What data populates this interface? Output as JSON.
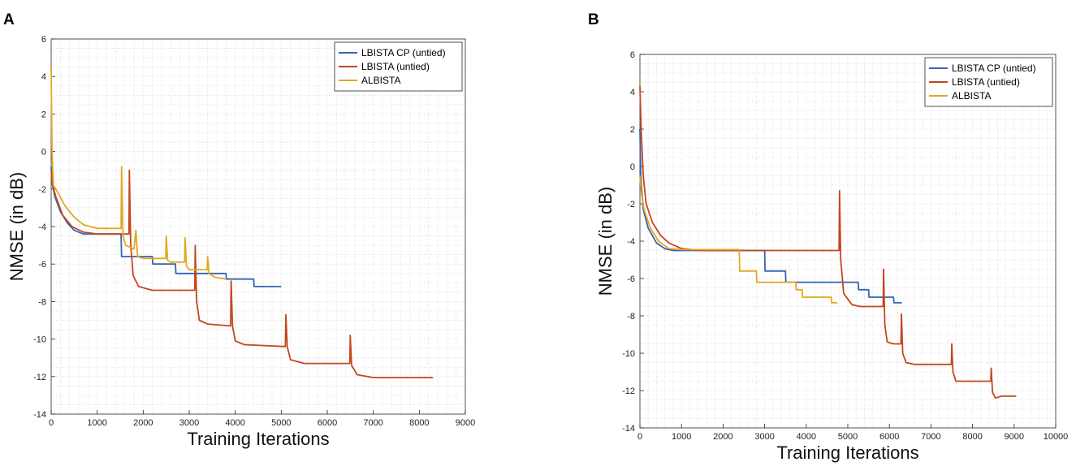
{
  "chart_data": [
    {
      "panel": "A",
      "type": "line",
      "xlabel": "Training Iterations",
      "ylabel": "NMSE (in dB)",
      "xlim": [
        0,
        9000
      ],
      "ylim": [
        -14,
        6
      ],
      "xticks": [
        0,
        1000,
        2000,
        3000,
        4000,
        5000,
        6000,
        7000,
        8000,
        9000
      ],
      "yticks": [
        -14,
        -12,
        -10,
        -8,
        -6,
        -4,
        -2,
        0,
        2,
        4,
        6
      ],
      "grid": "minor dotted",
      "legend_position": "top-right",
      "series": [
        {
          "name": "LBISTA CP (untied)",
          "color": "#3466b0",
          "points": [
            [
              0,
              -0.8
            ],
            [
              30,
              -1.8
            ],
            [
              80,
              -2.4
            ],
            [
              200,
              -3.2
            ],
            [
              350,
              -3.8
            ],
            [
              500,
              -4.2
            ],
            [
              700,
              -4.4
            ],
            [
              1520,
              -4.4
            ],
            [
              1530,
              -5.6
            ],
            [
              2200,
              -5.6
            ],
            [
              2210,
              -6.0
            ],
            [
              2700,
              -6.0
            ],
            [
              2710,
              -6.5
            ],
            [
              3200,
              -6.5
            ],
            [
              3210,
              -6.5
            ],
            [
              3800,
              -6.5
            ],
            [
              3810,
              -6.8
            ],
            [
              4400,
              -6.8
            ],
            [
              4410,
              -7.2
            ],
            [
              5000,
              -7.2
            ]
          ]
        },
        {
          "name": "LBISTA (untied)",
          "color": "#c4461f",
          "points": [
            [
              0,
              -1.0
            ],
            [
              30,
              -1.8
            ],
            [
              100,
              -2.4
            ],
            [
              250,
              -3.4
            ],
            [
              450,
              -4.0
            ],
            [
              700,
              -4.3
            ],
            [
              1000,
              -4.4
            ],
            [
              1690,
              -4.4
            ],
            [
              1700,
              -1.0
            ],
            [
              1730,
              -5.0
            ],
            [
              1780,
              -6.6
            ],
            [
              1900,
              -7.2
            ],
            [
              2200,
              -7.4
            ],
            [
              3120,
              -7.4
            ],
            [
              3130,
              -5.0
            ],
            [
              3160,
              -8.0
            ],
            [
              3220,
              -9.0
            ],
            [
              3400,
              -9.2
            ],
            [
              3900,
              -9.3
            ],
            [
              3910,
              -6.9
            ],
            [
              3940,
              -9.3
            ],
            [
              4000,
              -10.1
            ],
            [
              4200,
              -10.3
            ],
            [
              5090,
              -10.4
            ],
            [
              5100,
              -8.7
            ],
            [
              5130,
              -10.4
            ],
            [
              5200,
              -11.1
            ],
            [
              5500,
              -11.3
            ],
            [
              6490,
              -11.3
            ],
            [
              6500,
              -9.8
            ],
            [
              6530,
              -11.4
            ],
            [
              6650,
              -11.9
            ],
            [
              7000,
              -12.05
            ],
            [
              8300,
              -12.05
            ]
          ]
        },
        {
          "name": "ALBISTA",
          "color": "#e1a823",
          "points": [
            [
              0,
              4.5
            ],
            [
              20,
              0.0
            ],
            [
              50,
              -1.8
            ],
            [
              150,
              -2.2
            ],
            [
              300,
              -2.9
            ],
            [
              500,
              -3.5
            ],
            [
              700,
              -3.9
            ],
            [
              1000,
              -4.1
            ],
            [
              1520,
              -4.1
            ],
            [
              1530,
              -0.8
            ],
            [
              1560,
              -4.5
            ],
            [
              1620,
              -5.0
            ],
            [
              1800,
              -5.2
            ],
            [
              1840,
              -4.2
            ],
            [
              1880,
              -5.6
            ],
            [
              2000,
              -5.7
            ],
            [
              2490,
              -5.7
            ],
            [
              2500,
              -4.5
            ],
            [
              2530,
              -5.8
            ],
            [
              2600,
              -5.9
            ],
            [
              2900,
              -5.9
            ],
            [
              2910,
              -4.6
            ],
            [
              2940,
              -6.1
            ],
            [
              3000,
              -6.3
            ],
            [
              3390,
              -6.3
            ],
            [
              3400,
              -5.6
            ],
            [
              3430,
              -6.5
            ],
            [
              3550,
              -6.7
            ],
            [
              3800,
              -6.8
            ]
          ]
        }
      ]
    },
    {
      "panel": "B",
      "type": "line",
      "xlabel": "Training Iterations",
      "ylabel": "NMSE (in dB)",
      "xlim": [
        0,
        10000
      ],
      "ylim": [
        -14,
        6
      ],
      "xticks": [
        0,
        1000,
        2000,
        3000,
        4000,
        5000,
        6000,
        7000,
        8000,
        9000,
        10000
      ],
      "yticks": [
        -14,
        -12,
        -10,
        -8,
        -6,
        -4,
        -2,
        0,
        2,
        4,
        6
      ],
      "grid": "minor dotted",
      "legend_position": "top-right",
      "series": [
        {
          "name": "LBISTA CP (untied)",
          "color": "#3466b0",
          "points": [
            [
              0,
              2.0
            ],
            [
              20,
              -0.5
            ],
            [
              80,
              -2.3
            ],
            [
              200,
              -3.3
            ],
            [
              400,
              -4.1
            ],
            [
              600,
              -4.4
            ],
            [
              800,
              -4.5
            ],
            [
              3000,
              -4.5
            ],
            [
              3010,
              -5.6
            ],
            [
              3500,
              -5.6
            ],
            [
              3510,
              -6.2
            ],
            [
              5250,
              -6.2
            ],
            [
              5260,
              -6.6
            ],
            [
              5500,
              -6.6
            ],
            [
              5510,
              -7.0
            ],
            [
              6100,
              -7.0
            ],
            [
              6110,
              -7.3
            ],
            [
              6300,
              -7.3
            ]
          ]
        },
        {
          "name": "LBISTA (untied)",
          "color": "#c4461f",
          "points": [
            [
              0,
              4.3
            ],
            [
              30,
              2.0
            ],
            [
              80,
              -0.5
            ],
            [
              150,
              -2.0
            ],
            [
              300,
              -3.0
            ],
            [
              500,
              -3.7
            ],
            [
              700,
              -4.1
            ],
            [
              1000,
              -4.4
            ],
            [
              1500,
              -4.5
            ],
            [
              4790,
              -4.5
            ],
            [
              4800,
              -1.3
            ],
            [
              4830,
              -5.0
            ],
            [
              4900,
              -6.8
            ],
            [
              5100,
              -7.4
            ],
            [
              5300,
              -7.5
            ],
            [
              5850,
              -7.5
            ],
            [
              5860,
              -5.5
            ],
            [
              5890,
              -8.5
            ],
            [
              5950,
              -9.4
            ],
            [
              6100,
              -9.5
            ],
            [
              6280,
              -9.5
            ],
            [
              6290,
              -7.9
            ],
            [
              6320,
              -10.0
            ],
            [
              6400,
              -10.5
            ],
            [
              6600,
              -10.6
            ],
            [
              7490,
              -10.6
            ],
            [
              7500,
              -9.5
            ],
            [
              7530,
              -11.0
            ],
            [
              7600,
              -11.5
            ],
            [
              7800,
              -11.5
            ],
            [
              8440,
              -11.5
            ],
            [
              8450,
              -10.8
            ],
            [
              8480,
              -12.1
            ],
            [
              8550,
              -12.4
            ],
            [
              8700,
              -12.3
            ],
            [
              9050,
              -12.3
            ]
          ]
        },
        {
          "name": "ALBISTA",
          "color": "#e1a823",
          "points": [
            [
              0,
              -0.5
            ],
            [
              40,
              -1.5
            ],
            [
              100,
              -2.3
            ],
            [
              250,
              -3.3
            ],
            [
              450,
              -4.0
            ],
            [
              700,
              -4.4
            ],
            [
              1000,
              -4.45
            ],
            [
              2390,
              -4.45
            ],
            [
              2400,
              -5.6
            ],
            [
              2800,
              -5.6
            ],
            [
              2810,
              -6.2
            ],
            [
              3750,
              -6.2
            ],
            [
              3760,
              -6.6
            ],
            [
              3900,
              -6.6
            ],
            [
              3910,
              -7.0
            ],
            [
              4600,
              -7.0
            ],
            [
              4610,
              -7.3
            ],
            [
              4750,
              -7.3
            ]
          ]
        }
      ]
    }
  ],
  "panels": {
    "A": {
      "label": "A"
    },
    "B": {
      "label": "B"
    }
  }
}
